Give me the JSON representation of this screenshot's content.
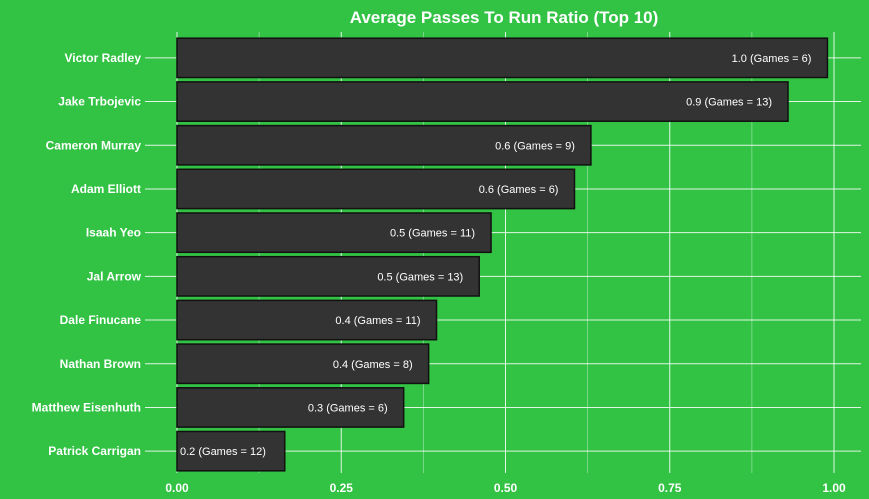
{
  "chart_data": {
    "type": "bar",
    "orientation": "horizontal",
    "title": "Average Passes To Run Ratio (Top 10)",
    "xlabel": "",
    "ylabel": "",
    "xlim": [
      0,
      1.0
    ],
    "x_ticks": [
      "0.00",
      "0.25",
      "0.50",
      "0.75",
      "1.00"
    ],
    "categories": [
      "Victor Radley",
      "Jake Trbojevic",
      "Cameron Murray",
      "Adam Elliott",
      "Isaah Yeo",
      "Jal Arrow",
      "Dale Finucane",
      "Nathan Brown",
      "Matthew Eisenhuth",
      "Patrick Carrigan"
    ],
    "values": [
      0.99,
      0.93,
      0.63,
      0.605,
      0.478,
      0.46,
      0.395,
      0.383,
      0.345,
      0.164
    ],
    "data_labels": [
      "1.0 (Games = 6)",
      "0.9 (Games = 13)",
      "0.6 (Games = 9)",
      "0.6 (Games = 6)",
      "0.5 (Games = 11)",
      "0.5 (Games = 13)",
      "0.4 (Games = 11)",
      "0.4 (Games = 8)",
      "0.3 (Games = 6)",
      "0.2 (Games = 12)"
    ],
    "grid": true,
    "colors": {
      "background": "#32c244",
      "bar": "#333333",
      "bar_edge": "#111111",
      "text": "#ffffff",
      "grid": "#ffffff"
    }
  }
}
